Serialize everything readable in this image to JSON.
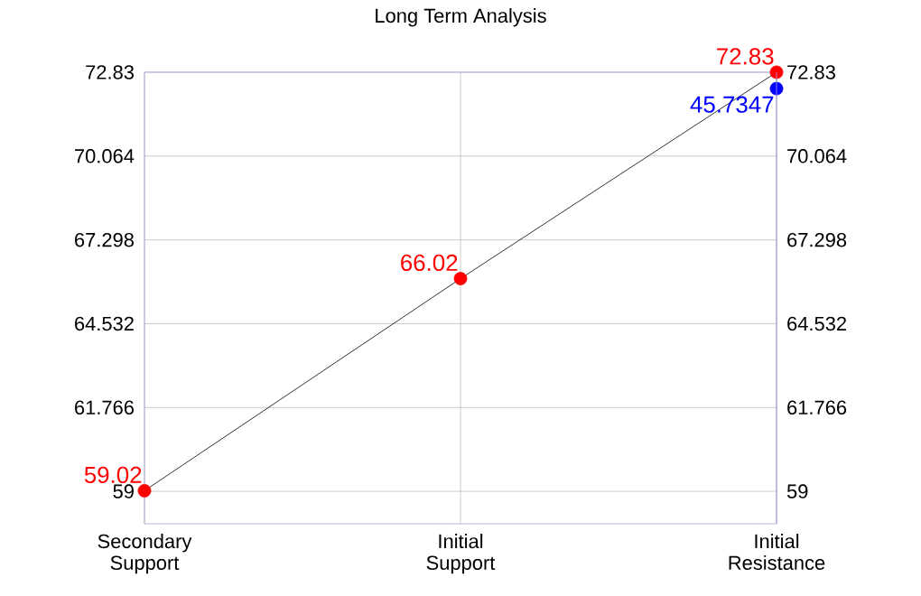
{
  "chart_data": {
    "type": "line",
    "title": "Long Term Analysis",
    "categories": [
      "Secondary Support",
      "Initial Support",
      "Initial Resistance"
    ],
    "series": [
      {
        "color": "#ff0000",
        "values": [
          59.02,
          66.02,
          72.83
        ],
        "value_labels": [
          "59.02",
          "66.02",
          "72.83"
        ]
      },
      {
        "type": "scatter",
        "color": "#0000ff",
        "values": [
          null,
          null,
          72.29
        ]
      }
    ],
    "annotations": [
      {
        "text": "45.7347",
        "x": "Initial Resistance",
        "y": 72.29
      }
    ],
    "ylim": [
      57.93,
      72.83
    ],
    "yticks": [
      59,
      61.766,
      64.532,
      67.298,
      70.064,
      72.83
    ],
    "y2lim": [
      57.93,
      72.83
    ],
    "y2ticks": [
      59,
      61.766,
      64.532,
      67.298,
      70.064,
      72.83
    ],
    "grid": true,
    "marker": "circle",
    "line_style": "solid"
  }
}
